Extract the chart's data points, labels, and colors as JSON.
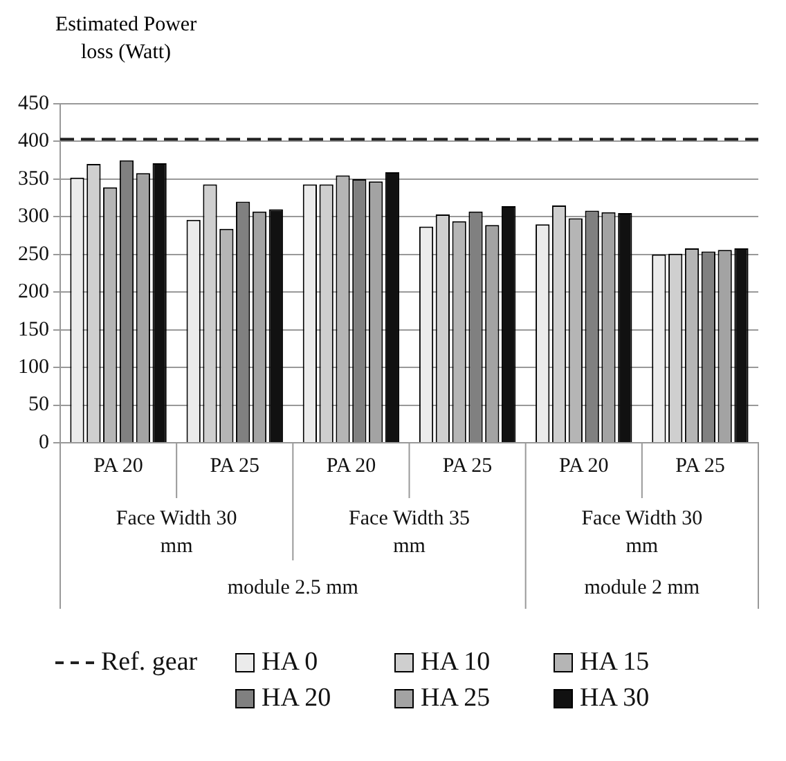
{
  "chart_data": {
    "type": "bar",
    "ylabel": "Estimated Power\nloss (Watt)",
    "categories": [
      "PA 20",
      "PA 25",
      "PA 20",
      "PA 25",
      "PA 20",
      "PA 25"
    ],
    "annotations": [
      "Face Width 30\nmm",
      "Face Width 35\nmm",
      "Face Width 30\nmm",
      "module 2.5 mm",
      "module 2 mm"
    ],
    "series": [
      {
        "name": "HA 0",
        "color": "#ebebeb",
        "values": [
          352,
          296,
          343,
          287,
          290,
          250
        ]
      },
      {
        "name": "HA 10",
        "color": "#cfcfcf",
        "values": [
          370,
          343,
          343,
          303,
          315,
          251
        ]
      },
      {
        "name": "HA 15",
        "color": "#b5b5b5",
        "values": [
          339,
          284,
          355,
          294,
          298,
          258
        ]
      },
      {
        "name": "HA 20",
        "color": "#808080",
        "values": [
          375,
          320,
          350,
          307,
          308,
          254
        ]
      },
      {
        "name": "HA 25",
        "color": "#a3a3a3",
        "values": [
          358,
          307,
          347,
          289,
          306,
          256
        ]
      },
      {
        "name": "HA 30",
        "color": "#111111",
        "values": [
          371,
          310,
          359,
          314,
          305,
          258
        ]
      }
    ],
    "ref_lines": [
      {
        "axis": "y",
        "value": 403,
        "label": "Ref. gear",
        "color": "#222222",
        "line_style": "dashed"
      }
    ],
    "ylim": [
      0,
      450
    ],
    "yticks": [
      0,
      50,
      100,
      150,
      200,
      250,
      300,
      350,
      400,
      450
    ],
    "grid": "y",
    "legend": "bottom"
  }
}
